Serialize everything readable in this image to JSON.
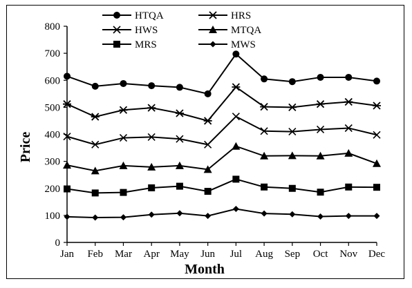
{
  "chart_data": {
    "type": "line",
    "title": "",
    "xlabel": "Month",
    "ylabel": "Price",
    "ylim": [
      0,
      800
    ],
    "yticks": [
      "0",
      "100",
      "200",
      "300",
      "400",
      "500",
      "600",
      "700",
      "800"
    ],
    "categories": [
      "Jan",
      "Feb",
      "Mar",
      "Apr",
      "May",
      "Jun",
      "Jul",
      "Aug",
      "Sep",
      "Oct",
      "Nov",
      "Dec"
    ],
    "grid": false,
    "legend_position": "top",
    "series": [
      {
        "name": "HTQA",
        "marker": "circle",
        "values": [
          615,
          578,
          588,
          580,
          574,
          550,
          697,
          605,
          595,
          611,
          611,
          597
        ]
      },
      {
        "name": "HRS",
        "marker": "star",
        "values": [
          512,
          465,
          490,
          498,
          478,
          450,
          575,
          502,
          500,
          512,
          520,
          506
        ]
      },
      {
        "name": "HWS",
        "marker": "x",
        "values": [
          392,
          362,
          387,
          390,
          383,
          362,
          466,
          412,
          410,
          418,
          423,
          398
        ]
      },
      {
        "name": "MTQA",
        "marker": "triangle",
        "values": [
          286,
          265,
          284,
          279,
          284,
          270,
          356,
          320,
          321,
          320,
          330,
          292
        ]
      },
      {
        "name": "MRS",
        "marker": "square",
        "values": [
          198,
          183,
          185,
          202,
          208,
          189,
          234,
          205,
          200,
          186,
          205,
          204
        ]
      },
      {
        "name": "MWS",
        "marker": "diamond",
        "values": [
          95,
          92,
          93,
          103,
          108,
          98,
          124,
          107,
          104,
          96,
          98,
          98
        ]
      }
    ]
  }
}
